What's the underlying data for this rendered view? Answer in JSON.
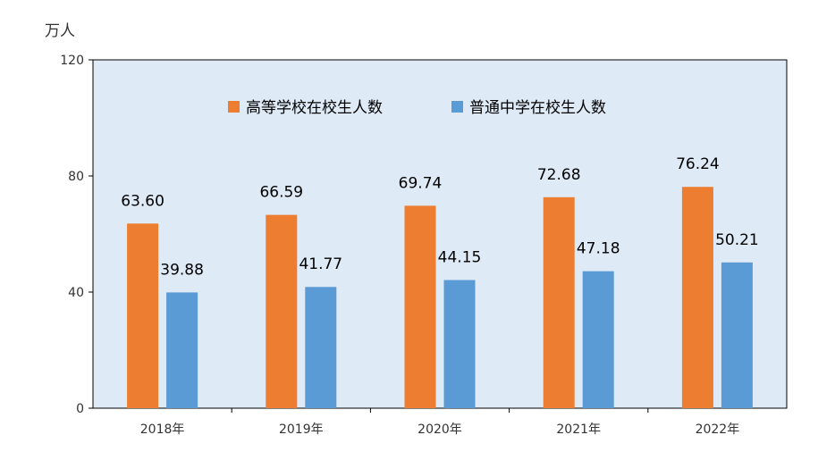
{
  "chart_data": {
    "type": "bar",
    "title": "",
    "ylabel": "万人",
    "xlabel": "",
    "categories": [
      "2018年",
      "2019年",
      "2020年",
      "2021年",
      "2022年"
    ],
    "series": [
      {
        "name": "高等学校在校生人数",
        "color": "#ED7D31",
        "values": [
          63.6,
          66.59,
          69.74,
          72.68,
          76.24
        ]
      },
      {
        "name": "普通中学在校生人数",
        "color": "#5B9BD5",
        "values": [
          39.88,
          41.77,
          44.15,
          47.18,
          50.21
        ]
      }
    ],
    "ylim": [
      0,
      120
    ],
    "yticks": [
      0,
      40,
      80,
      120
    ],
    "grid": false,
    "plot_background": "#DEEAF6",
    "legend_position": "top-center",
    "data_labels": true
  }
}
